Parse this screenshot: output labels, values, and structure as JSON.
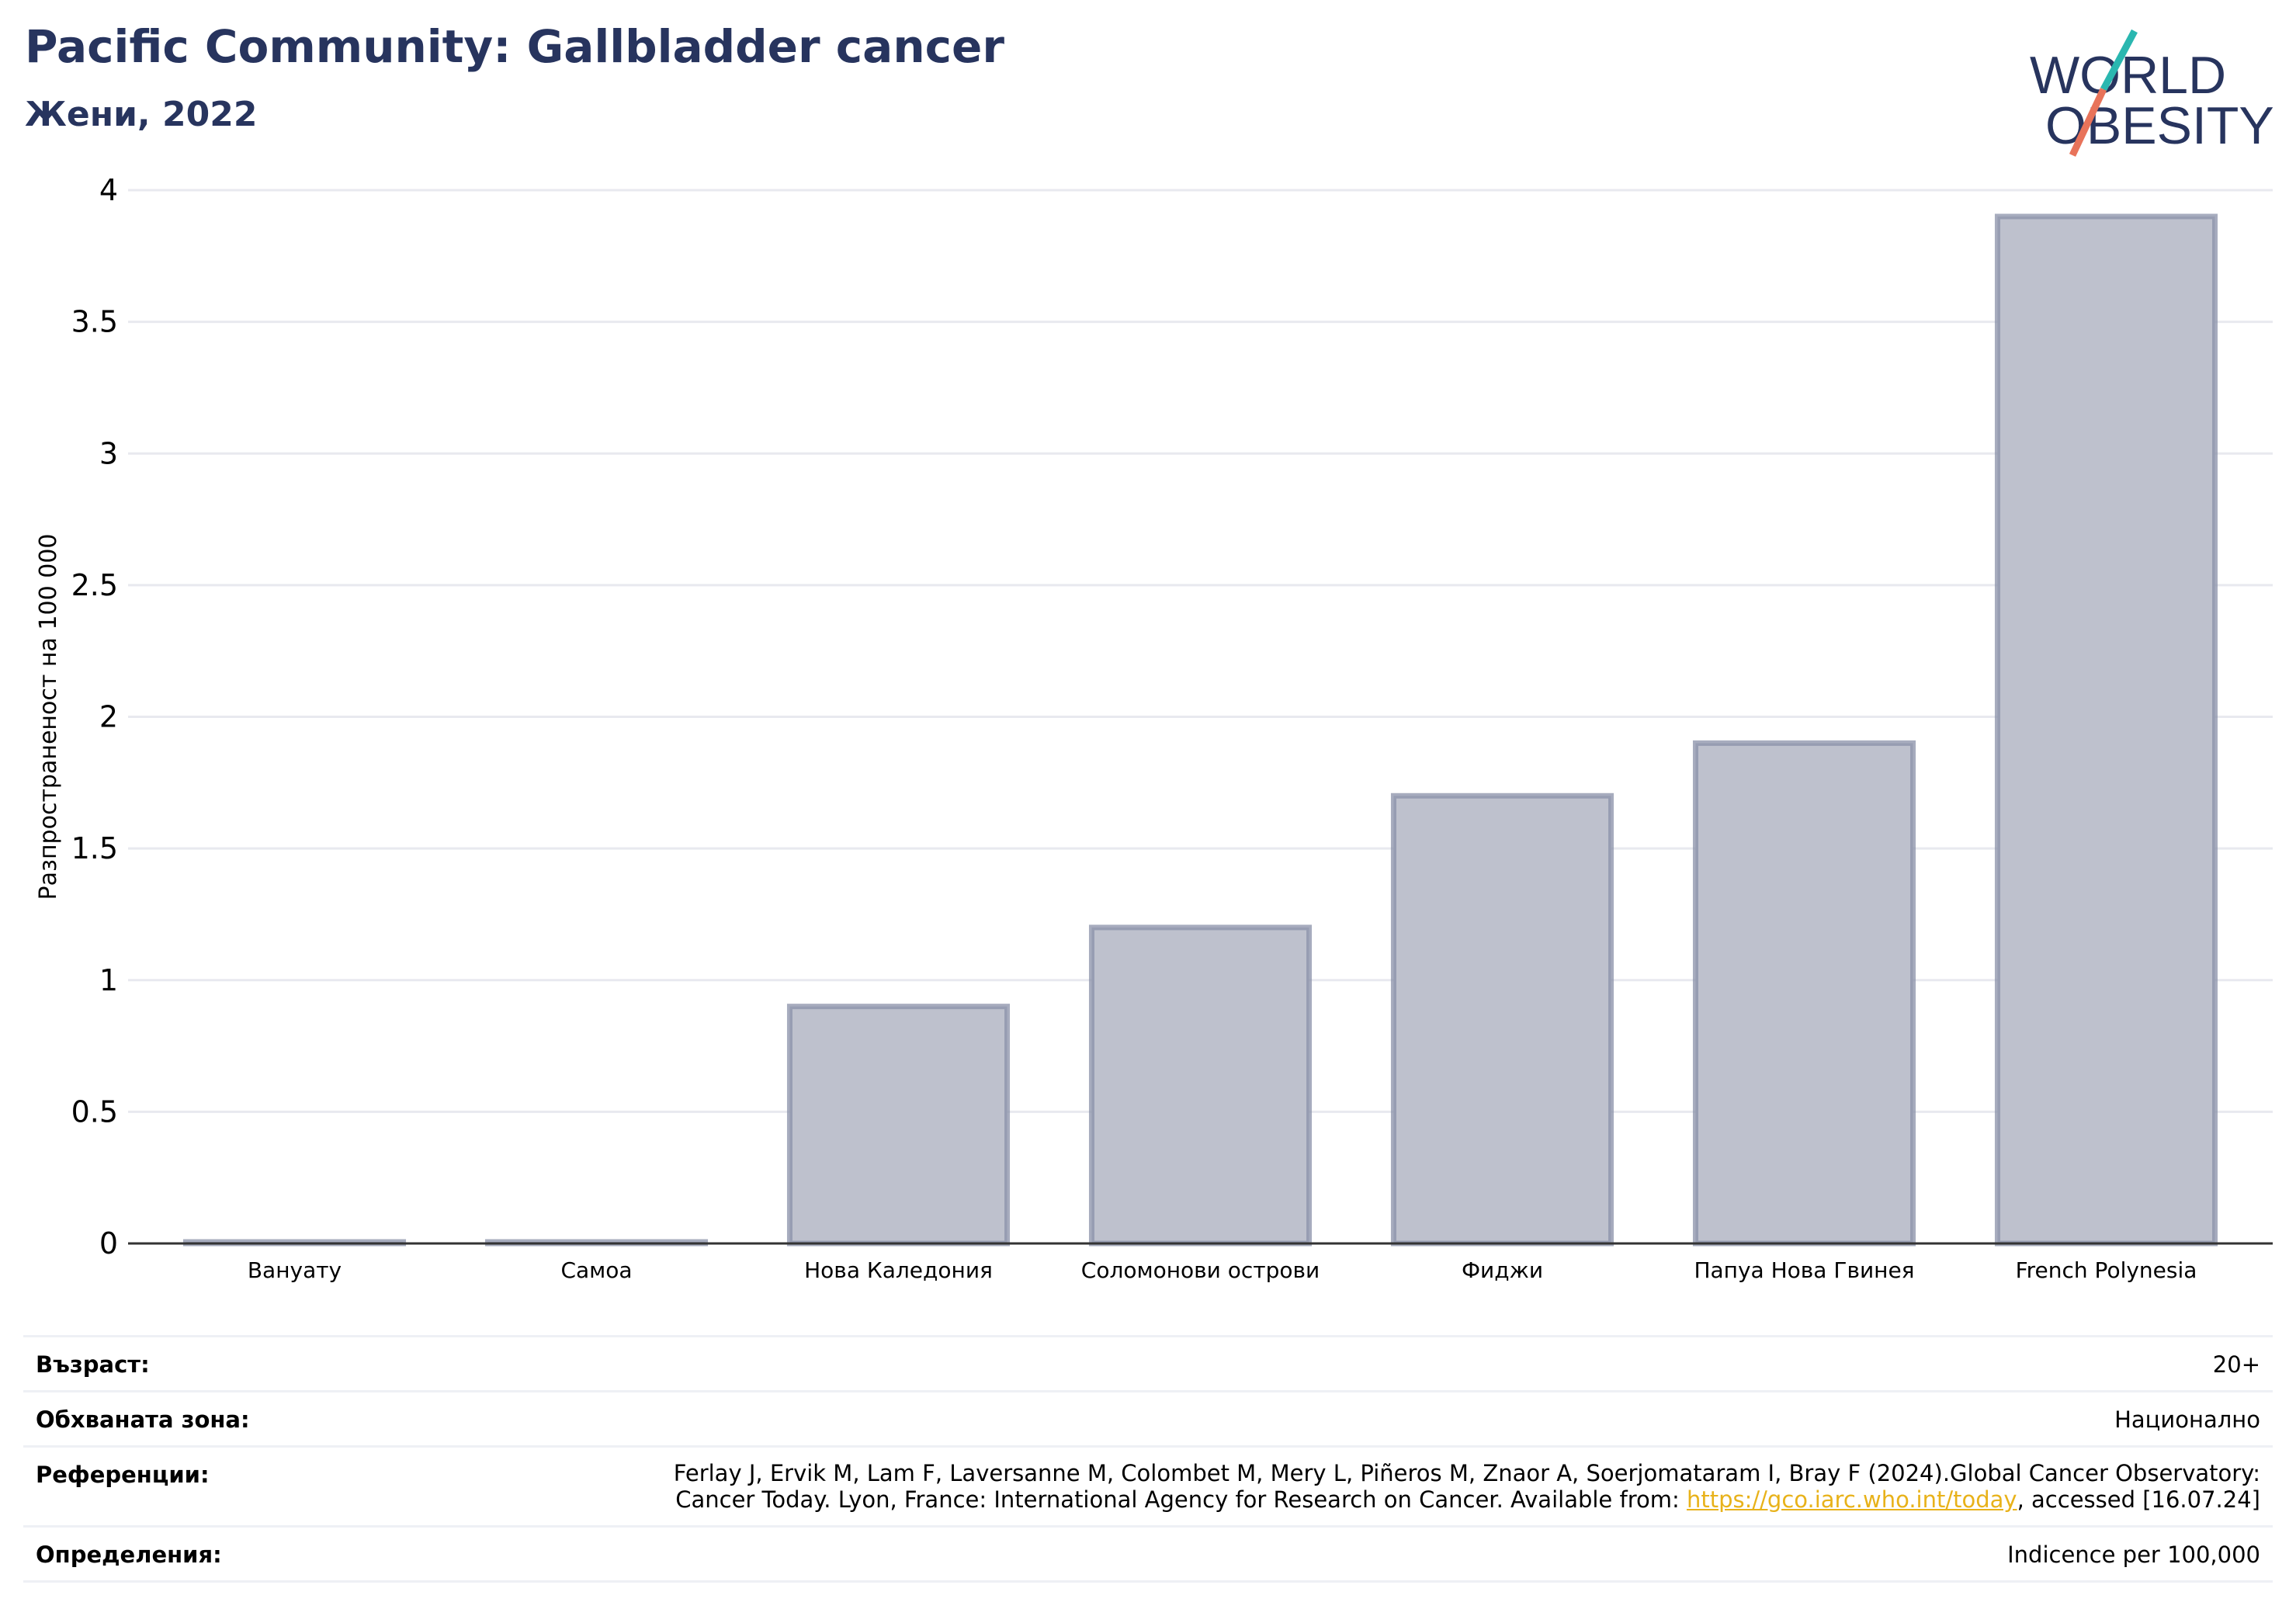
{
  "header": {
    "title": "Pacific Community: Gallbladder cancer",
    "subtitle": "Жени, 2022"
  },
  "logo": {
    "line1": "WORLD",
    "line2": "OBESITY",
    "colors": {
      "text": "#27345e",
      "slash_top": "#2ab7b0",
      "slash_bottom": "#e8735a"
    }
  },
  "chart_data": {
    "type": "bar",
    "categories": [
      "Вануату",
      "Самоа",
      "Нова Каледония",
      "Соломонови острови",
      "Фиджи",
      "Папуа Нова Гвинея",
      "French Polynesia"
    ],
    "values": [
      0,
      0,
      0.9,
      1.2,
      1.7,
      1.9,
      3.9
    ],
    "ylabel": "Разпространеност  на 100 000",
    "xlabel": "",
    "ylim": [
      0,
      4
    ],
    "yticks": [
      "0",
      "0.5",
      "1",
      "1.5",
      "2",
      "2.5",
      "3",
      "3.5",
      "4"
    ],
    "grid": true,
    "bar_fill": "#bec1cd",
    "bar_stroke": "#8a90a8"
  },
  "meta": {
    "age_label": "Възраст:",
    "age_value": "20+",
    "area_label": "Обхваната зона:",
    "area_value": "Национално",
    "ref_label": "Референции:",
    "ref_line1": "Ferlay J, Ervik M, Lam F, Laversanne M, Colombet M, Mery L, Piñeros M, Znaor A, Soerjomataram I, Bray F (2024).Global Cancer Observatory:",
    "ref_line2_pre": "Cancer Today. Lyon, France: International Agency for Research on Cancer. Available from: ",
    "ref_link": "https://gco.iarc.who.int/today",
    "ref_line2_post": ", accessed [16.07.24]",
    "def_label": "Определения:",
    "def_value": "Indicence per 100,000"
  }
}
